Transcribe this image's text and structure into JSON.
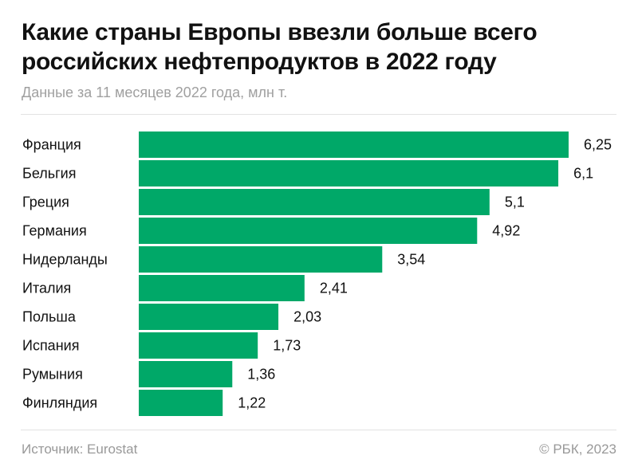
{
  "title": "Какие страны Европы ввезли больше всего российских нефтепродуктов в 2022 году",
  "subtitle": "Данные за 11 месяцев 2022 года, млн т.",
  "footer": {
    "source": "Источник: Eurostat",
    "copyright": "© РБК, 2023"
  },
  "chart_data": {
    "type": "bar",
    "orientation": "horizontal",
    "title": "Какие страны Европы ввезли больше всего российских нефтепродуктов в 2022 году",
    "subtitle": "Данные за 11 месяцев 2022 года, млн т.",
    "categories": [
      "Франция",
      "Бельгия",
      "Греция",
      "Германия",
      "Нидерланды",
      "Италия",
      "Польша",
      "Испания",
      "Румыния",
      "Финляндия"
    ],
    "values": [
      6.25,
      6.1,
      5.1,
      4.92,
      3.54,
      2.41,
      2.03,
      1.73,
      1.36,
      1.22
    ],
    "labels": [
      "6,25",
      "6,1",
      "5,1",
      "4,92",
      "3,54",
      "2,41",
      "2,03",
      "1,73",
      "1,36",
      "1,22"
    ],
    "xlim": [
      0,
      6.25
    ],
    "grid": false,
    "color": "#00A868"
  }
}
